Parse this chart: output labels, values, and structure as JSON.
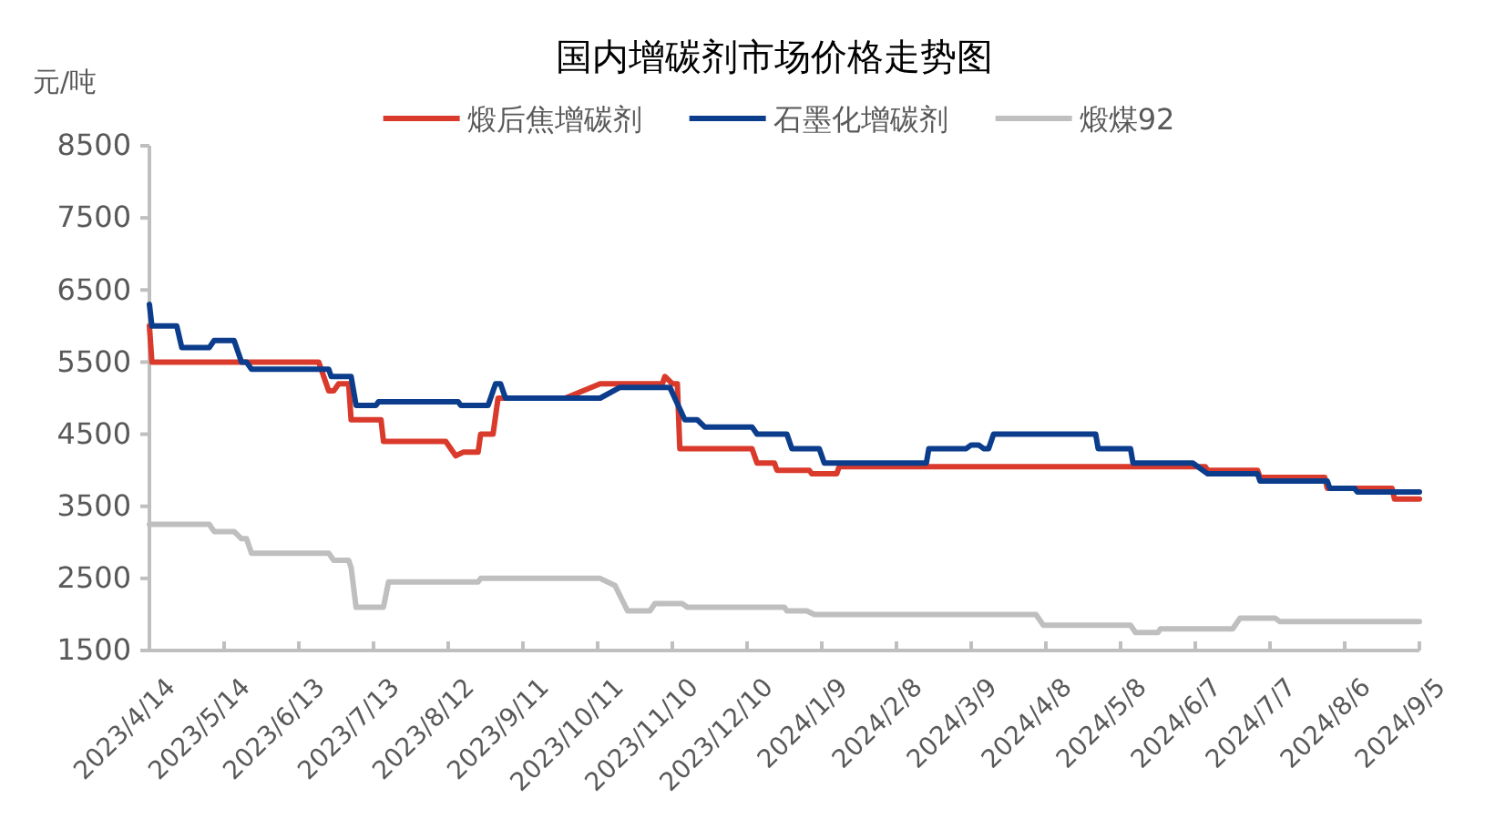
{
  "chart_data": {
    "type": "line",
    "title": "国内增碳剂市场价格走势图",
    "ylabel": "元/吨",
    "legend": "top",
    "grid": false,
    "marker": "none",
    "line_style": "solid",
    "xlim": [
      "2023-04-14",
      "2024-09-05"
    ],
    "xticks": [
      {
        "value": "2023-04-14",
        "label": "2023/4/14"
      },
      {
        "value": "2023-05-14",
        "label": "2023/5/14"
      },
      {
        "value": "2023-06-13",
        "label": "2023/6/13"
      },
      {
        "value": "2023-07-13",
        "label": "2023/7/13"
      },
      {
        "value": "2023-08-12",
        "label": "2023/8/12"
      },
      {
        "value": "2023-09-11",
        "label": "2023/9/11"
      },
      {
        "value": "2023-10-11",
        "label": "2023/10/11"
      },
      {
        "value": "2023-11-10",
        "label": "2023/11/10"
      },
      {
        "value": "2023-12-10",
        "label": "2023/12/10"
      },
      {
        "value": "2024-01-09",
        "label": "2024/1/9"
      },
      {
        "value": "2024-02-08",
        "label": "2024/2/8"
      },
      {
        "value": "2024-03-09",
        "label": "2024/3/9"
      },
      {
        "value": "2024-04-08",
        "label": "2024/4/8"
      },
      {
        "value": "2024-05-08",
        "label": "2024/5/8"
      },
      {
        "value": "2024-06-07",
        "label": "2024/6/7"
      },
      {
        "value": "2024-07-07",
        "label": "2024/7/7"
      },
      {
        "value": "2024-08-06",
        "label": "2024/8/6"
      },
      {
        "value": "2024-09-05",
        "label": "2024/9/5"
      }
    ],
    "ylim": [
      1500,
      8500
    ],
    "yticks": [
      1500,
      2500,
      3500,
      4500,
      5500,
      6500,
      7500,
      8500
    ],
    "series": [
      {
        "name": "煅后焦增碳剂",
        "color": "#d93a2b",
        "x": [
          "2023-04-14",
          "2023-04-15",
          "2023-06-21",
          "2023-06-25",
          "2023-06-27",
          "2023-06-29",
          "2023-07-03",
          "2023-07-04",
          "2023-07-16",
          "2023-07-17",
          "2023-08-11",
          "2023-08-15",
          "2023-08-18",
          "2023-08-24",
          "2023-08-25",
          "2023-08-30",
          "2023-09-01",
          "2023-09-28",
          "2023-10-12",
          "2023-11-06",
          "2023-11-07",
          "2023-11-10",
          "2023-11-12",
          "2023-11-13",
          "2023-12-12",
          "2023-12-14",
          "2023-12-21",
          "2023-12-22",
          "2024-01-04",
          "2024-01-05",
          "2024-01-15",
          "2024-01-16",
          "2024-06-11",
          "2024-06-12",
          "2024-07-02",
          "2024-07-03",
          "2024-07-29",
          "2024-07-30",
          "2024-08-25",
          "2024-08-26",
          "2024-09-05"
        ],
        "values": [
          6000,
          5500,
          5500,
          5100,
          5100,
          5200,
          5200,
          4700,
          4700,
          4400,
          4400,
          4200,
          4250,
          4250,
          4500,
          4500,
          5000,
          5000,
          5200,
          5200,
          5300,
          5200,
          5200,
          4300,
          4300,
          4100,
          4100,
          4000,
          4000,
          3950,
          3950,
          4050,
          4050,
          4000,
          4000,
          3900,
          3900,
          3750,
          3750,
          3600,
          3600
        ]
      },
      {
        "name": "石墨化增碳剂",
        "color": "#0b3d8c",
        "x": [
          "2023-04-14",
          "2023-04-15",
          "2023-04-25",
          "2023-04-27",
          "2023-05-08",
          "2023-05-10",
          "2023-05-18",
          "2023-05-21",
          "2023-05-23",
          "2023-05-25",
          "2023-06-25",
          "2023-06-26",
          "2023-07-04",
          "2023-07-06",
          "2023-07-14",
          "2023-07-15",
          "2023-08-16",
          "2023-08-17",
          "2023-08-28",
          "2023-08-31",
          "2023-09-02",
          "2023-09-04",
          "2023-10-12",
          "2023-10-20",
          "2023-11-09",
          "2023-11-15",
          "2023-11-20",
          "2023-11-23",
          "2023-12-12",
          "2023-12-14",
          "2023-12-26",
          "2023-12-28",
          "2024-01-08",
          "2024-01-10",
          "2024-02-20",
          "2024-02-21",
          "2024-03-07",
          "2024-03-09",
          "2024-03-12",
          "2024-03-14",
          "2024-03-16",
          "2024-03-18",
          "2024-04-28",
          "2024-04-29",
          "2024-05-12",
          "2024-05-13",
          "2024-06-06",
          "2024-06-12",
          "2024-07-02",
          "2024-07-03",
          "2024-07-30",
          "2024-07-31",
          "2024-08-10",
          "2024-08-11",
          "2024-09-05"
        ],
        "values": [
          6300,
          6000,
          6000,
          5700,
          5700,
          5800,
          5800,
          5500,
          5500,
          5400,
          5400,
          5300,
          5300,
          4900,
          4900,
          4950,
          4950,
          4900,
          4900,
          5200,
          5200,
          5000,
          5000,
          5150,
          5150,
          4700,
          4700,
          4600,
          4600,
          4500,
          4500,
          4300,
          4300,
          4100,
          4100,
          4300,
          4300,
          4350,
          4350,
          4300,
          4300,
          4500,
          4500,
          4300,
          4300,
          4100,
          4100,
          3950,
          3950,
          3850,
          3850,
          3750,
          3750,
          3700,
          3700
        ]
      },
      {
        "name": "煅煤92",
        "color": "#bfbfbf",
        "x": [
          "2023-04-14",
          "2023-05-08",
          "2023-05-10",
          "2023-05-18",
          "2023-05-21",
          "2023-05-23",
          "2023-05-25",
          "2023-06-25",
          "2023-06-27",
          "2023-07-03",
          "2023-07-04",
          "2023-07-06",
          "2023-07-17",
          "2023-07-19",
          "2023-08-24",
          "2023-08-25",
          "2023-10-12",
          "2023-10-18",
          "2023-10-23",
          "2023-11-01",
          "2023-11-03",
          "2023-11-14",
          "2023-11-16",
          "2023-12-25",
          "2023-12-26",
          "2024-01-03",
          "2024-01-06",
          "2024-04-04",
          "2024-04-07",
          "2024-05-12",
          "2024-05-14",
          "2024-05-23",
          "2024-05-24",
          "2024-06-22",
          "2024-06-25",
          "2024-07-09",
          "2024-07-11",
          "2024-09-05"
        ],
        "values": [
          3250,
          3250,
          3150,
          3150,
          3050,
          3050,
          2850,
          2850,
          2750,
          2750,
          2650,
          2100,
          2100,
          2450,
          2450,
          2500,
          2500,
          2400,
          2050,
          2050,
          2150,
          2150,
          2100,
          2100,
          2050,
          2050,
          2000,
          2000,
          1850,
          1850,
          1750,
          1750,
          1800,
          1800,
          1950,
          1950,
          1900,
          1900
        ]
      }
    ]
  }
}
